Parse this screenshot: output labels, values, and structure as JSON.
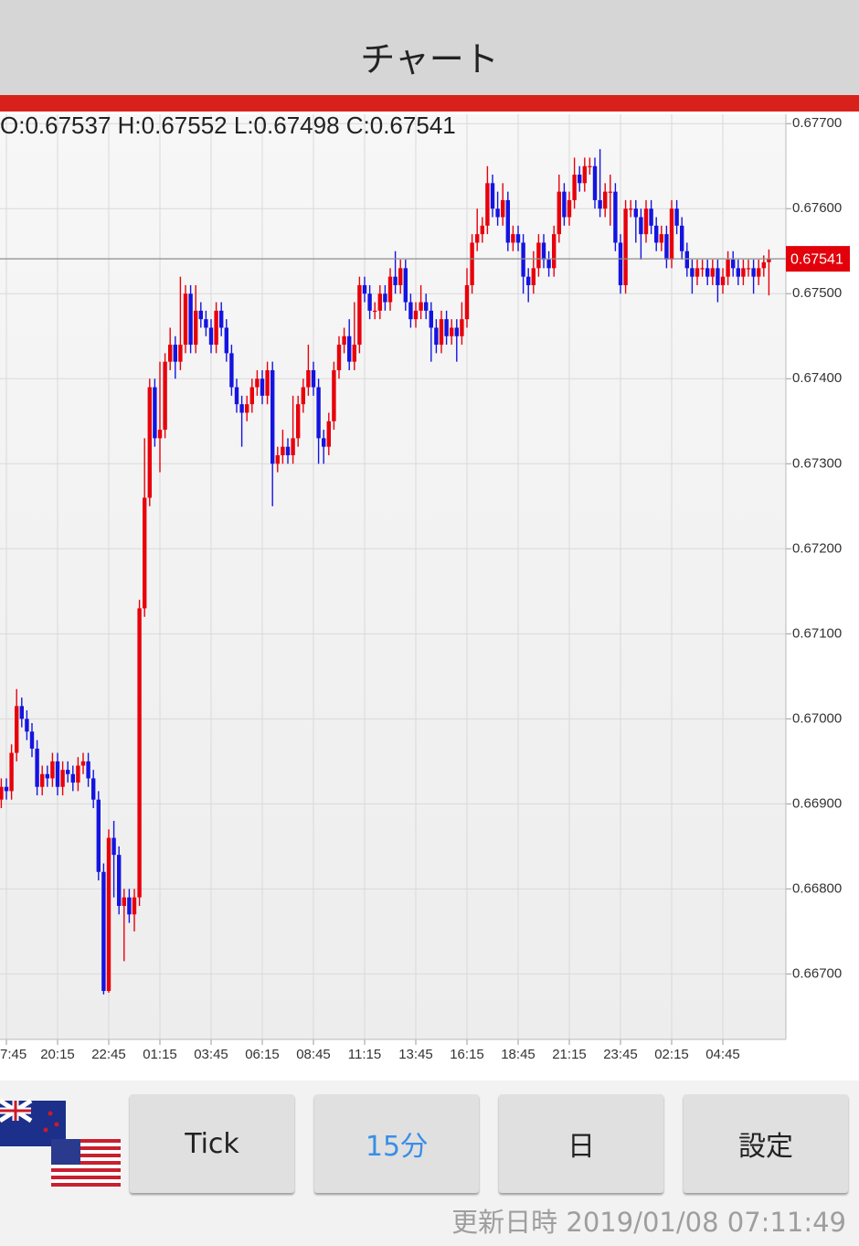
{
  "header": {
    "title": "チャート"
  },
  "chart_data": {
    "type": "candlestick",
    "subtitle": "O:0.67537 H:0.67552 L:0.67498 C:0.67541",
    "categories": [
      null,
      "7:45",
      null,
      null,
      null,
      null,
      null,
      null,
      null,
      null,
      null,
      "20:15",
      null,
      null,
      null,
      null,
      null,
      null,
      null,
      null,
      null,
      "22:45",
      null,
      null,
      null,
      null,
      null,
      null,
      null,
      null,
      null,
      "01:15",
      null,
      null,
      null,
      null,
      null,
      null,
      null,
      null,
      null,
      "03:45",
      null,
      null,
      null,
      null,
      null,
      null,
      null,
      null,
      null,
      "06:15",
      null,
      null,
      null,
      null,
      null,
      null,
      null,
      null,
      null,
      "08:45",
      null,
      null,
      null,
      null,
      null,
      null,
      null,
      null,
      null,
      "11:15",
      null,
      null,
      null,
      null,
      null,
      null,
      null,
      null,
      null,
      "13:45",
      null,
      null,
      null,
      null,
      null,
      null,
      null,
      null,
      null,
      "16:15",
      null,
      null,
      null,
      null,
      null,
      null,
      null,
      null,
      null,
      "18:45",
      null,
      null,
      null,
      null,
      null,
      null,
      null,
      null,
      null,
      "21:15",
      null,
      null,
      null,
      null,
      null,
      null,
      null,
      null,
      null,
      "23:45",
      null,
      null,
      null,
      null,
      null,
      null,
      null,
      null,
      null,
      "02:15",
      null,
      null,
      null,
      null,
      null,
      null,
      null,
      null,
      null,
      "04:45",
      null,
      null,
      null,
      null,
      null,
      null,
      null,
      null,
      null
    ],
    "open": [
      0.66905,
      0.6692,
      0.66915,
      0.6696,
      0.67015,
      0.67,
      0.66985,
      0.66965,
      0.6692,
      0.66935,
      0.6693,
      0.6695,
      0.6692,
      0.6694,
      0.66935,
      0.66925,
      0.66945,
      0.6695,
      0.6693,
      0.66905,
      0.6682,
      0.6668,
      0.6686,
      0.6684,
      0.6678,
      0.6679,
      0.6677,
      0.6679,
      0.6713,
      0.6726,
      0.6739,
      0.6733,
      0.6734,
      0.6742,
      0.6744,
      0.6742,
      0.6744,
      0.675,
      0.6744,
      0.6748,
      0.6747,
      0.6746,
      0.6744,
      0.6748,
      0.6746,
      0.6743,
      0.6739,
      0.6737,
      0.6736,
      0.6737,
      0.6739,
      0.674,
      0.6738,
      0.6741,
      0.673,
      0.6731,
      0.6732,
      0.6731,
      0.6733,
      0.6737,
      0.6739,
      0.6741,
      0.6739,
      0.6733,
      0.6732,
      0.6735,
      0.6741,
      0.6744,
      0.6745,
      0.6742,
      0.6744,
      0.6751,
      0.675,
      0.6748,
      0.6748,
      0.675,
      0.6749,
      0.6752,
      0.6751,
      0.6753,
      0.6749,
      0.6747,
      0.6748,
      0.6749,
      0.6748,
      0.6746,
      0.6744,
      0.6747,
      0.6745,
      0.6746,
      0.6745,
      0.6747,
      0.6751,
      0.6756,
      0.6757,
      0.6758,
      0.6763,
      0.676,
      0.6759,
      0.6761,
      0.6756,
      0.6757,
      0.6756,
      0.6752,
      0.6751,
      0.6753,
      0.6756,
      0.6754,
      0.6753,
      0.6757,
      0.6762,
      0.6759,
      0.6761,
      0.6764,
      0.6763,
      0.6765,
      0.6765,
      0.6761,
      0.676,
      0.6762,
      0.6762,
      0.6756,
      0.6751,
      0.676,
      0.676,
      0.6759,
      0.6757,
      0.676,
      0.6758,
      0.6756,
      0.6757,
      0.6754,
      0.676,
      0.6758,
      0.6755,
      0.6753,
      0.6752,
      0.6753,
      0.6753,
      0.6752,
      0.6753,
      0.6751,
      0.6752,
      0.6754,
      0.6753,
      0.6752,
      0.6753,
      0.6753,
      0.6752,
      0.6753,
      0.67537
    ],
    "high": [
      0.6693,
      0.6693,
      0.6697,
      0.67035,
      0.67025,
      0.6701,
      0.66995,
      0.66975,
      0.66945,
      0.66945,
      0.6696,
      0.6696,
      0.6695,
      0.6695,
      0.66945,
      0.66955,
      0.6696,
      0.6696,
      0.6694,
      0.66915,
      0.6683,
      0.6687,
      0.6688,
      0.6685,
      0.668,
      0.668,
      0.668,
      0.6714,
      0.6733,
      0.674,
      0.674,
      0.6742,
      0.6743,
      0.6746,
      0.6745,
      0.6752,
      0.6751,
      0.6751,
      0.6751,
      0.6749,
      0.6748,
      0.6747,
      0.6749,
      0.6749,
      0.6747,
      0.6744,
      0.674,
      0.6738,
      0.6738,
      0.674,
      0.6741,
      0.6741,
      0.6742,
      0.6742,
      0.6732,
      0.6734,
      0.6733,
      0.6738,
      0.6738,
      0.674,
      0.6744,
      0.6742,
      0.674,
      0.6734,
      0.6736,
      0.6742,
      0.6745,
      0.6746,
      0.6747,
      0.6749,
      0.6752,
      0.6752,
      0.6751,
      0.6749,
      0.6751,
      0.6751,
      0.6753,
      0.6755,
      0.6754,
      0.6754,
      0.675,
      0.6749,
      0.6751,
      0.675,
      0.6749,
      0.6747,
      0.6748,
      0.6748,
      0.6747,
      0.6747,
      0.6749,
      0.6753,
      0.6757,
      0.676,
      0.6759,
      0.6765,
      0.6764,
      0.6762,
      0.6763,
      0.6762,
      0.6758,
      0.6758,
      0.6757,
      0.6753,
      0.6755,
      0.6757,
      0.6757,
      0.6755,
      0.6758,
      0.6764,
      0.6763,
      0.6762,
      0.6766,
      0.6765,
      0.6766,
      0.6766,
      0.6766,
      0.6767,
      0.6763,
      0.6764,
      0.6763,
      0.6757,
      0.6761,
      0.6761,
      0.6761,
      0.676,
      0.6761,
      0.6761,
      0.6759,
      0.6758,
      0.6758,
      0.6761,
      0.6761,
      0.6759,
      0.6756,
      0.6754,
      0.6754,
      0.6754,
      0.6754,
      0.6754,
      0.6754,
      0.6753,
      0.6755,
      0.6755,
      0.6754,
      0.6754,
      0.6754,
      0.6754,
      0.6754,
      0.67545,
      0.67552
    ],
    "low": [
      0.66895,
      0.66905,
      0.66905,
      0.6695,
      0.6699,
      0.66975,
      0.66955,
      0.6691,
      0.6691,
      0.6692,
      0.6692,
      0.6691,
      0.6691,
      0.66925,
      0.66915,
      0.66915,
      0.66935,
      0.6692,
      0.66895,
      0.6681,
      0.66676,
      0.66678,
      0.6679,
      0.6677,
      0.66715,
      0.6676,
      0.6675,
      0.6678,
      0.6712,
      0.6725,
      0.6732,
      0.6729,
      0.6733,
      0.6741,
      0.674,
      0.6741,
      0.6743,
      0.6743,
      0.6743,
      0.6746,
      0.6745,
      0.6743,
      0.6743,
      0.6745,
      0.6742,
      0.6738,
      0.6736,
      0.6732,
      0.6735,
      0.6736,
      0.6738,
      0.6737,
      0.6737,
      0.6725,
      0.6729,
      0.673,
      0.673,
      0.673,
      0.6732,
      0.6736,
      0.6738,
      0.6738,
      0.673,
      0.673,
      0.6731,
      0.6734,
      0.674,
      0.6743,
      0.6741,
      0.6741,
      0.6743,
      0.6749,
      0.6747,
      0.6747,
      0.6747,
      0.6748,
      0.6748,
      0.675,
      0.675,
      0.6748,
      0.6746,
      0.6746,
      0.6747,
      0.6747,
      0.6742,
      0.6743,
      0.6743,
      0.6744,
      0.6744,
      0.6742,
      0.6744,
      0.6746,
      0.675,
      0.6755,
      0.6756,
      0.6757,
      0.6759,
      0.6758,
      0.6758,
      0.6755,
      0.6755,
      0.6755,
      0.675,
      0.6749,
      0.675,
      0.6752,
      0.6753,
      0.6752,
      0.6752,
      0.6756,
      0.6758,
      0.6758,
      0.676,
      0.6762,
      0.6762,
      0.6764,
      0.676,
      0.6759,
      0.6759,
      0.6758,
      0.6755,
      0.675,
      0.675,
      0.6759,
      0.6756,
      0.6754,
      0.6756,
      0.6757,
      0.6755,
      0.6755,
      0.6753,
      0.6753,
      0.6757,
      0.6754,
      0.6752,
      0.675,
      0.6751,
      0.6752,
      0.6751,
      0.6751,
      0.6749,
      0.675,
      0.6751,
      0.6752,
      0.6751,
      0.6751,
      0.6752,
      0.675,
      0.6751,
      0.6752,
      0.67498
    ],
    "close": [
      0.6692,
      0.66915,
      0.6696,
      0.67015,
      0.67,
      0.66985,
      0.66965,
      0.6692,
      0.66935,
      0.6693,
      0.6695,
      0.6692,
      0.6694,
      0.66935,
      0.66925,
      0.66945,
      0.6695,
      0.6693,
      0.66905,
      0.6682,
      0.6668,
      0.6686,
      0.6684,
      0.6678,
      0.6679,
      0.6677,
      0.6679,
      0.6713,
      0.6726,
      0.6739,
      0.6733,
      0.6734,
      0.6742,
      0.6744,
      0.6742,
      0.6744,
      0.675,
      0.6744,
      0.6748,
      0.6747,
      0.6746,
      0.6744,
      0.6748,
      0.6746,
      0.6743,
      0.6739,
      0.6737,
      0.6736,
      0.6737,
      0.6739,
      0.674,
      0.6738,
      0.6741,
      0.673,
      0.6731,
      0.6732,
      0.6731,
      0.6733,
      0.6737,
      0.6739,
      0.6741,
      0.6739,
      0.6733,
      0.6732,
      0.6735,
      0.6741,
      0.6744,
      0.6745,
      0.6742,
      0.6744,
      0.6751,
      0.675,
      0.6748,
      0.6748,
      0.675,
      0.6749,
      0.6752,
      0.6751,
      0.6753,
      0.6749,
      0.6747,
      0.6748,
      0.6749,
      0.6748,
      0.6746,
      0.6744,
      0.6747,
      0.6745,
      0.6746,
      0.6745,
      0.6747,
      0.6751,
      0.6756,
      0.6757,
      0.6758,
      0.6763,
      0.676,
      0.6759,
      0.6761,
      0.6756,
      0.6757,
      0.6756,
      0.6752,
      0.6751,
      0.6753,
      0.6756,
      0.6754,
      0.6753,
      0.6757,
      0.6762,
      0.6759,
      0.6761,
      0.6764,
      0.6763,
      0.6765,
      0.6765,
      0.6761,
      0.676,
      0.6762,
      0.6762,
      0.6756,
      0.6751,
      0.676,
      0.676,
      0.6759,
      0.6757,
      0.676,
      0.6758,
      0.6756,
      0.6757,
      0.6754,
      0.676,
      0.6758,
      0.6755,
      0.6753,
      0.6752,
      0.6753,
      0.6753,
      0.6752,
      0.6753,
      0.6751,
      0.6752,
      0.6754,
      0.6753,
      0.6752,
      0.6753,
      0.6753,
      0.6752,
      0.6753,
      0.67537,
      0.67541
    ],
    "up_color": "#e8000b",
    "down_color": "#1414e0",
    "last_price": 0.67541,
    "last_price_color": "#e2000b",
    "ylim": [
      0.66623,
      0.67711
    ],
    "yticks": [
      {
        "value": 0.667,
        "label": "0.66700"
      },
      {
        "value": 0.668,
        "label": "0.66800"
      },
      {
        "value": 0.669,
        "label": "0.66900"
      },
      {
        "value": 0.67,
        "label": "0.67000"
      },
      {
        "value": 0.671,
        "label": "0.67100"
      },
      {
        "value": 0.672,
        "label": "0.67200"
      },
      {
        "value": 0.673,
        "label": "0.67300"
      },
      {
        "value": 0.674,
        "label": "0.67400"
      },
      {
        "value": 0.675,
        "label": "0.67500"
      },
      {
        "value": 0.676,
        "label": "0.67600"
      },
      {
        "value": 0.677,
        "label": "0.67700"
      }
    ],
    "grid": true
  },
  "buttons": [
    "Tick",
    "15分",
    "日",
    "設定"
  ],
  "updated": "更新日時 2019/01/08 07:11:49"
}
